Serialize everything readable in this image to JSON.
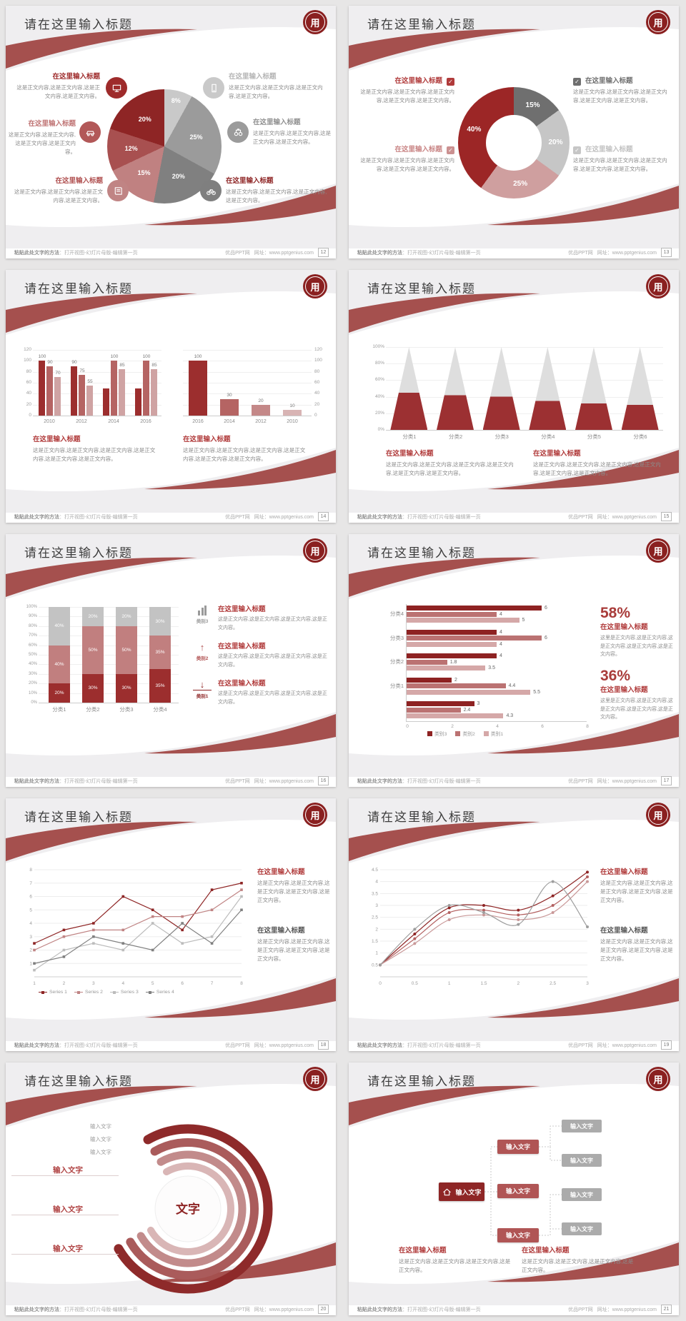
{
  "app": {
    "page_bg": "#e7e6e6",
    "accent": "#a5504e",
    "logo_color": "#8a2020"
  },
  "common": {
    "slide_title": "请在这里输入标题",
    "logo_glyph": "用",
    "logo_name": "学校校徽",
    "block_title": "在这里输入标题",
    "body_short": "这是正文内容,这是正文内容,这是正文内容,这是正文内容。",
    "body_medium": "这是正文内容,这是正文内容,这是正文内容,这是正文内容,这是正文内容。",
    "body_long": "这是正文内容,这是正文内容,这是正文内容,这是正文内容,这是正文内容,这是正文内容。",
    "body_stat": "这里是正文内容,这是正文内容,这是正文内容,这是正文内容,这是正文内容。",
    "input_text": "输入文字",
    "center_text": "文字",
    "footer": {
      "method_bold": "粘贴此处文字的方法",
      "method_rest": "：打开视图-幻灯片母版-编辑第一页",
      "site": "优品PPT网",
      "site_url": "网址：www.pptgenius.com"
    }
  },
  "slides": [
    {
      "page": "12",
      "layout": "pie",
      "left_blocks": [
        {
          "title": "在这里输入标题",
          "title_color": "#9e2b2b",
          "body": "这是正文内容,这是正文内容,这是正文内容,这是正文内容。",
          "icon": "monitor",
          "icon_color": "#9e2b2b"
        },
        {
          "title": "在这里输入标题",
          "title_color": "#c07575",
          "body": "这是正文内容,这是正文内容,这是正文内容,这是正文内容。",
          "icon": "car",
          "icon_color": "#b25858"
        },
        {
          "title": "在这里输入标题",
          "title_color": "#b05050",
          "body": "这是正文内容,这是正文内容,这是正文内容,这是正文内容。",
          "icon": "book",
          "icon_color": "#c08484"
        }
      ],
      "right_blocks": [
        {
          "title": "在这里输入标题",
          "title_color": "#b5b5b5",
          "body": "这是正文内容,这是正文内容,这是正文内容,这是正文内容。",
          "icon": "phone",
          "icon_color": "#c9c9c9"
        },
        {
          "title": "在这里输入标题",
          "title_color": "#909090",
          "body": "这是正文内容,这是正文内容,这是正文内容,这是正文内容。",
          "icon": "binoculars",
          "icon_color": "#9b9b9b"
        },
        {
          "title": "在这里输入标题",
          "title_color": "#8e2525",
          "body": "这是正文内容,这是正文内容,这是正文内容,这是正文内容。",
          "icon": "bicycle",
          "icon_color": "#7f7f7f"
        }
      ]
    },
    {
      "page": "13",
      "layout": "donut",
      "left_blocks": [
        {
          "title": "在这里输入标题",
          "title_color": "#b03a3a",
          "check_color": "#b03a3a",
          "body": "这是正文内容,这是正文内容,这是正文内容,这是正文内容,这是正文内容。"
        },
        {
          "title": "在这里输入标题",
          "title_color": "#c98585",
          "check_color": "#cb9191",
          "body": "这是正文内容,这是正文内容,这是正文内容,这是正文内容,这是正文内容。"
        }
      ],
      "right_blocks": [
        {
          "title": "在这里输入标题",
          "title_color": "#6f6f6f",
          "check_color": "#6f6f6f",
          "body": "这是正文内容,这是正文内容,这是正文内容,这是正文内容,这是正文内容。"
        },
        {
          "title": "在这里输入标题",
          "title_color": "#c2c2c2",
          "check_color": "#c6c6c6",
          "body": "这是正文内容,这是正文内容,这是正文内容,这是正文内容,这是正文内容。"
        }
      ]
    },
    {
      "page": "14",
      "layout": "bars",
      "blocks": [
        {
          "title": "在这里输入标题",
          "title_color": "#b03a3a",
          "body": "这是正文内容,这是正文内容,这是正文内容,这是正文内容,这是正文内容,这是正文内容。"
        },
        {
          "title": "在这里输入标题",
          "title_color": "#b03a3a",
          "body": "这是正文内容,这是正文内容,这是正文内容,这是正文内容,这是正文内容,这是正文内容。"
        }
      ]
    },
    {
      "page": "15",
      "layout": "cones",
      "blocks": [
        {
          "title": "在这里输入标题",
          "title_color": "#b03a3a",
          "body": "这是正文内容,这是正文内容,这是正文内容,这是正文内容,这是正文内容,这是正文内容。"
        },
        {
          "title": "在这里输入标题",
          "title_color": "#b03a3a",
          "body": "这是正文内容,这是正文内容,这是正文内容,这是正文内容,这是正文内容,这是正文内容。"
        }
      ]
    },
    {
      "page": "16",
      "layout": "stacked",
      "side_items": [
        {
          "cat": "类别3",
          "icon": "chart-bars",
          "color": "#9a9a9a",
          "title": "在这里输入标题",
          "title_color": "#b03a3a",
          "body": "这是正文内容,这是正文内容,这是正文内容,这是正文内容。"
        },
        {
          "cat": "类别2",
          "icon": "arrow-up",
          "color": "#b05050",
          "title": "在这里输入标题",
          "title_color": "#b03a3a",
          "body": "这是正文内容,这是正文内容,这是正文内容,这是正文内容。"
        },
        {
          "cat": "类别1",
          "icon": "arrow-down",
          "color": "#8e2525",
          "title": "在这里输入标题",
          "title_color": "#b03a3a",
          "body": "这是正文内容,这是正文内容,这是正文内容,这是正文内容。"
        }
      ]
    },
    {
      "page": "17",
      "layout": "hbars",
      "stats": [
        {
          "value": "58%",
          "title": "在这里输入标题",
          "body": "这里是正文内容,这是正文内容,这是正文内容,这是正文内容,这是正文内容。"
        },
        {
          "value": "36%",
          "title": "在这里输入标题",
          "body": "这里是正文内容,这是正文内容,这是正文内容,这是正文内容,这是正文内容。"
        }
      ]
    },
    {
      "page": "18",
      "layout": "lines",
      "blocks": [
        {
          "title": "在这里输入标题",
          "title_color": "#b03a3a",
          "body": "这是正文内容,这是正文内容,这是正文内容,这是正文内容,这是正文内容。"
        },
        {
          "title": "在这里输入标题",
          "title_color": "#555555",
          "body": "这是正文内容,这是正文内容,这是正文内容,这是正文内容,这是正文内容。"
        }
      ]
    },
    {
      "page": "19",
      "layout": "curves",
      "blocks": [
        {
          "title": "在这里输入标题",
          "title_color": "#b03a3a",
          "body": "这是正文内容,这是正文内容,这是正文内容,这是正文内容,这是正文内容。"
        },
        {
          "title": "在这里输入标题",
          "title_color": "#555555",
          "body": "这是正文内容,这是正文内容,这是正文内容,这是正文内容,这是正文内容。"
        }
      ]
    },
    {
      "page": "20",
      "layout": "radial"
    },
    {
      "page": "21",
      "layout": "flow",
      "blocks": [
        {
          "title": "在这里输入标题",
          "title_color": "#b03a3a",
          "body": "这是正文内容,这是正文内容,这是正文内容,这是正文内容。"
        },
        {
          "title": "在这里输入标题",
          "title_color": "#b03a3a",
          "body": "这是正文内容,这是正文内容,这是正文内容,这是正文内容。"
        }
      ]
    }
  ],
  "chart_data": [
    {
      "type": "pie",
      "slide_page": "12",
      "values": [
        8,
        25,
        20,
        15,
        12,
        20
      ],
      "labels": [
        "8%",
        "25%",
        "20%",
        "15%",
        "12%",
        "20%"
      ],
      "colors": [
        "#c9c9c9",
        "#9b9b9b",
        "#808080",
        "#c08181",
        "#a85050",
        "#8e2525"
      ],
      "start_angle_deg": 0
    },
    {
      "type": "pie",
      "variant": "donut",
      "slide_page": "13",
      "values": [
        15,
        20,
        25,
        40
      ],
      "labels": [
        "15%",
        "20%",
        "25%",
        "40%"
      ],
      "colors": [
        "#6f6f6f",
        "#c6c6c6",
        "#cf9f9f",
        "#9c2626"
      ]
    },
    {
      "type": "bar",
      "slide_page": "14",
      "charts": [
        {
          "categories": [
            "2010",
            "2012",
            "2014",
            "2016"
          ],
          "ylim": [
            0,
            120
          ],
          "yticks": [
            "0",
            "20",
            "40",
            "60",
            "80",
            "100",
            "120"
          ],
          "series_colors": [
            "#9c2e2e",
            "#b56463",
            "#cfa3a3"
          ],
          "groups": [
            [
              100,
              90,
              70
            ],
            [
              90,
              75,
              55
            ],
            [
              50,
              100,
              85
            ],
            [
              50,
              100,
              85
            ]
          ],
          "bar_labels": [
            [
              "100",
              "90",
              "70"
            ],
            [
              "90",
              "75",
              "55"
            ],
            [
              "",
              "100",
              "85"
            ],
            [
              "",
              "100",
              "85"
            ]
          ],
          "y_axis_side": "left"
        },
        {
          "categories": [
            "2016",
            "2014",
            "2012",
            "2010"
          ],
          "ylim": [
            0,
            120
          ],
          "yticks": [
            "0",
            "20",
            "40",
            "60",
            "80",
            "100",
            "120"
          ],
          "bar_colors": [
            "#9c2e2e",
            "#b56463",
            "#c48888",
            "#d8b4b4"
          ],
          "values": [
            100,
            30,
            20,
            10
          ],
          "bar_labels": [
            "100",
            "30",
            "20",
            "10"
          ],
          "y_axis_side": "right"
        }
      ]
    },
    {
      "type": "bar",
      "variant": "cone",
      "slide_page": "15",
      "categories": [
        "分类1",
        "分类2",
        "分类3",
        "分类4",
        "分类5",
        "分类6"
      ],
      "values_pct": [
        45,
        42,
        40,
        35,
        32,
        30
      ],
      "yticks": [
        "100%",
        "80%",
        "60%",
        "40%",
        "20%",
        "0%"
      ],
      "cone_fill": "#9c3032",
      "cone_top": "#dedede"
    },
    {
      "type": "stacked-bar",
      "slide_page": "16",
      "categories": [
        "分类1",
        "分类2",
        "分类3",
        "分类4"
      ],
      "yticks": [
        "100%",
        "90%",
        "80%",
        "70%",
        "60%",
        "50%",
        "40%",
        "30%",
        "20%",
        "10%",
        "0%"
      ],
      "series": [
        {
          "name": "类别1",
          "color": "#9c2e2e",
          "values": [
            20,
            30,
            30,
            35
          ]
        },
        {
          "name": "类别2",
          "color": "#c17f7f",
          "values": [
            40,
            50,
            50,
            35
          ]
        },
        {
          "name": "类别3",
          "color": "#c3c3c3",
          "values": [
            40,
            20,
            20,
            30
          ]
        }
      ]
    },
    {
      "type": "bar-horizontal",
      "slide_page": "17",
      "xticks": [
        "0",
        "2",
        "4",
        "6",
        "8"
      ],
      "xlim": [
        0,
        8
      ],
      "bar_colors": [
        "#8e2222",
        "#bb7272",
        "#d5a8a8"
      ],
      "groups": [
        {
          "label": "分类4",
          "values": [
            6,
            4,
            5
          ],
          "value_labels": [
            "6",
            "4",
            "5"
          ]
        },
        {
          "label": "分类3",
          "values": [
            4,
            6,
            4
          ],
          "value_labels": [
            "4",
            "6",
            "4"
          ]
        },
        {
          "label": "分类2",
          "values": [
            4,
            1.8,
            3.5
          ],
          "value_labels": [
            "4",
            "1.8",
            "3.5"
          ]
        },
        {
          "label": "分类1",
          "values": [
            2,
            4.4,
            5.5
          ],
          "value_labels": [
            "2",
            "4.4",
            "5.5"
          ]
        },
        {
          "label": "",
          "values": [
            3,
            2.4,
            4.3
          ],
          "value_labels": [
            "3",
            "2.4",
            "4.3"
          ]
        }
      ],
      "legend": [
        {
          "label": "类别3",
          "color": "#8e2222"
        },
        {
          "label": "类别2",
          "color": "#bb7272"
        },
        {
          "label": "类别1",
          "color": "#d5a8a8"
        }
      ]
    },
    {
      "type": "line",
      "slide_page": "18",
      "x": [
        1,
        2,
        3,
        4,
        5,
        6,
        7,
        8
      ],
      "xticks": [
        "1",
        "2",
        "3",
        "4",
        "5",
        "6",
        "7",
        "8"
      ],
      "ylim": [
        0,
        8
      ],
      "yticks": [
        "8",
        "7",
        "6",
        "5",
        "4",
        "3",
        "2",
        "1"
      ],
      "series": [
        {
          "name": "Series 1",
          "color": "#8e2525",
          "values": [
            2.5,
            3.5,
            4,
            6,
            5,
            3.5,
            6.5,
            7
          ]
        },
        {
          "name": "Series 2",
          "color": "#c08484",
          "values": [
            2,
            3,
            3.5,
            3.5,
            4.5,
            4.5,
            5,
            6.5
          ]
        },
        {
          "name": "Series 3",
          "color": "#bcbcbc",
          "values": [
            0.5,
            2,
            2.5,
            2,
            4,
            2.5,
            3,
            6
          ]
        },
        {
          "name": "Series 4",
          "color": "#808080",
          "values": [
            1,
            1.5,
            3,
            2.5,
            2,
            4,
            2.5,
            5
          ]
        }
      ],
      "legend_position": "bottom"
    },
    {
      "type": "line",
      "variant": "smooth",
      "slide_page": "19",
      "x": [
        0,
        0.5,
        1,
        1.5,
        2,
        2.5,
        3
      ],
      "xticks": [
        "0",
        "0.5",
        "1",
        "1.5",
        "2",
        "2.5",
        "3"
      ],
      "ylim": [
        0,
        4.5
      ],
      "yticks": [
        "4.5",
        "4",
        "3.5",
        "3",
        "2.5",
        "2",
        "1.5",
        "1",
        "0.5"
      ],
      "series": [
        {
          "color": "#8e2525",
          "values": [
            0.5,
            1.8,
            2.9,
            3.0,
            2.8,
            3.4,
            4.4
          ]
        },
        {
          "color": "#b36060",
          "values": [
            0.5,
            1.6,
            2.7,
            2.8,
            2.6,
            3.0,
            4.2
          ]
        },
        {
          "color": "#c99898",
          "values": [
            0.5,
            1.4,
            2.4,
            2.6,
            2.4,
            2.7,
            4.0
          ]
        },
        {
          "color": "#9e9e9e",
          "values": [
            0.5,
            2.0,
            3.0,
            2.7,
            2.2,
            4.0,
            2.1
          ]
        }
      ]
    },
    {
      "type": "radial-diagram",
      "slide_page": "20",
      "ring_colors": [
        "#8e2a2a",
        "#aa5b5b",
        "#c28b8b",
        "#d9b6b6"
      ],
      "top_labels": [
        "输入文字",
        "输入文字",
        "输入文字"
      ],
      "side_labels": [
        "输入文字",
        "输入文字",
        "输入文字"
      ],
      "center_label": "文字"
    },
    {
      "type": "flow-diagram",
      "slide_page": "21",
      "root": {
        "label": "输入文字",
        "icon": "home-icon",
        "color": "#8e2626"
      },
      "mid_nodes": [
        {
          "label": "输入文字",
          "color": "#b05555"
        },
        {
          "label": "输入文字",
          "color": "#b05555"
        },
        {
          "label": "输入文字",
          "color": "#b05555"
        }
      ],
      "leaf_nodes": [
        {
          "label": "输入文字",
          "color": "#ababab"
        },
        {
          "label": "输入文字",
          "color": "#ababab"
        },
        {
          "label": "输入文字",
          "color": "#ababab"
        },
        {
          "label": "输入文字",
          "color": "#ababab"
        }
      ]
    }
  ]
}
